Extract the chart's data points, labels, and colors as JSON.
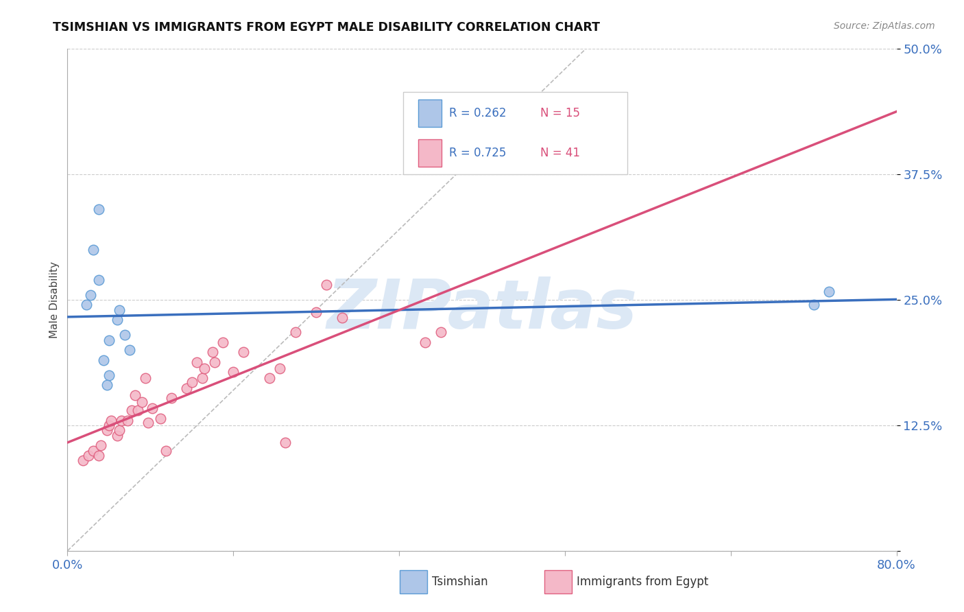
{
  "title": "TSIMSHIAN VS IMMIGRANTS FROM EGYPT MALE DISABILITY CORRELATION CHART",
  "source": "Source: ZipAtlas.com",
  "ylabel_label": "Male Disability",
  "xlim": [
    0.0,
    0.8
  ],
  "ylim": [
    0.0,
    0.5
  ],
  "xtick_positions": [
    0.0,
    0.16,
    0.32,
    0.48,
    0.64,
    0.8
  ],
  "xtick_labels": [
    "0.0%",
    "",
    "",
    "",
    "",
    "80.0%"
  ],
  "ytick_positions": [
    0.0,
    0.125,
    0.25,
    0.375,
    0.5
  ],
  "ytick_labels": [
    "",
    "12.5%",
    "25.0%",
    "37.5%",
    "50.0%"
  ],
  "grid_color": "#cccccc",
  "background_color": "#ffffff",
  "tsimshian_color": "#aec6e8",
  "tsimshian_edge_color": "#5b9bd5",
  "egypt_color": "#f4b8c8",
  "egypt_edge_color": "#e06080",
  "tsimshian_R": "0.262",
  "tsimshian_N": "15",
  "egypt_R": "0.725",
  "egypt_N": "41",
  "tsimshian_line_color": "#3a6fbe",
  "egypt_line_color": "#d94f7a",
  "diagonal_color": "#bbbbbb",
  "tsimshian_x": [
    0.018,
    0.022,
    0.025,
    0.03,
    0.035,
    0.04,
    0.048,
    0.05,
    0.055,
    0.04,
    0.038,
    0.06,
    0.03,
    0.72,
    0.735
  ],
  "tsimshian_y": [
    0.245,
    0.255,
    0.3,
    0.27,
    0.19,
    0.21,
    0.23,
    0.24,
    0.215,
    0.175,
    0.165,
    0.2,
    0.34,
    0.245,
    0.258
  ],
  "egypt_x": [
    0.015,
    0.02,
    0.025,
    0.03,
    0.032,
    0.038,
    0.04,
    0.042,
    0.048,
    0.05,
    0.052,
    0.058,
    0.062,
    0.065,
    0.068,
    0.072,
    0.075,
    0.078,
    0.082,
    0.09,
    0.095,
    0.1,
    0.115,
    0.12,
    0.125,
    0.13,
    0.132,
    0.14,
    0.142,
    0.15,
    0.16,
    0.17,
    0.195,
    0.205,
    0.21,
    0.22,
    0.24,
    0.25,
    0.265,
    0.345,
    0.36
  ],
  "egypt_y": [
    0.09,
    0.095,
    0.1,
    0.095,
    0.105,
    0.12,
    0.125,
    0.13,
    0.115,
    0.12,
    0.13,
    0.13,
    0.14,
    0.155,
    0.14,
    0.148,
    0.172,
    0.128,
    0.142,
    0.132,
    0.1,
    0.152,
    0.162,
    0.168,
    0.188,
    0.172,
    0.182,
    0.198,
    0.188,
    0.208,
    0.178,
    0.198,
    0.172,
    0.182,
    0.108,
    0.218,
    0.238,
    0.265,
    0.232,
    0.208,
    0.218
  ],
  "watermark_text": "ZIPatlas",
  "watermark_color": "#dce8f5"
}
